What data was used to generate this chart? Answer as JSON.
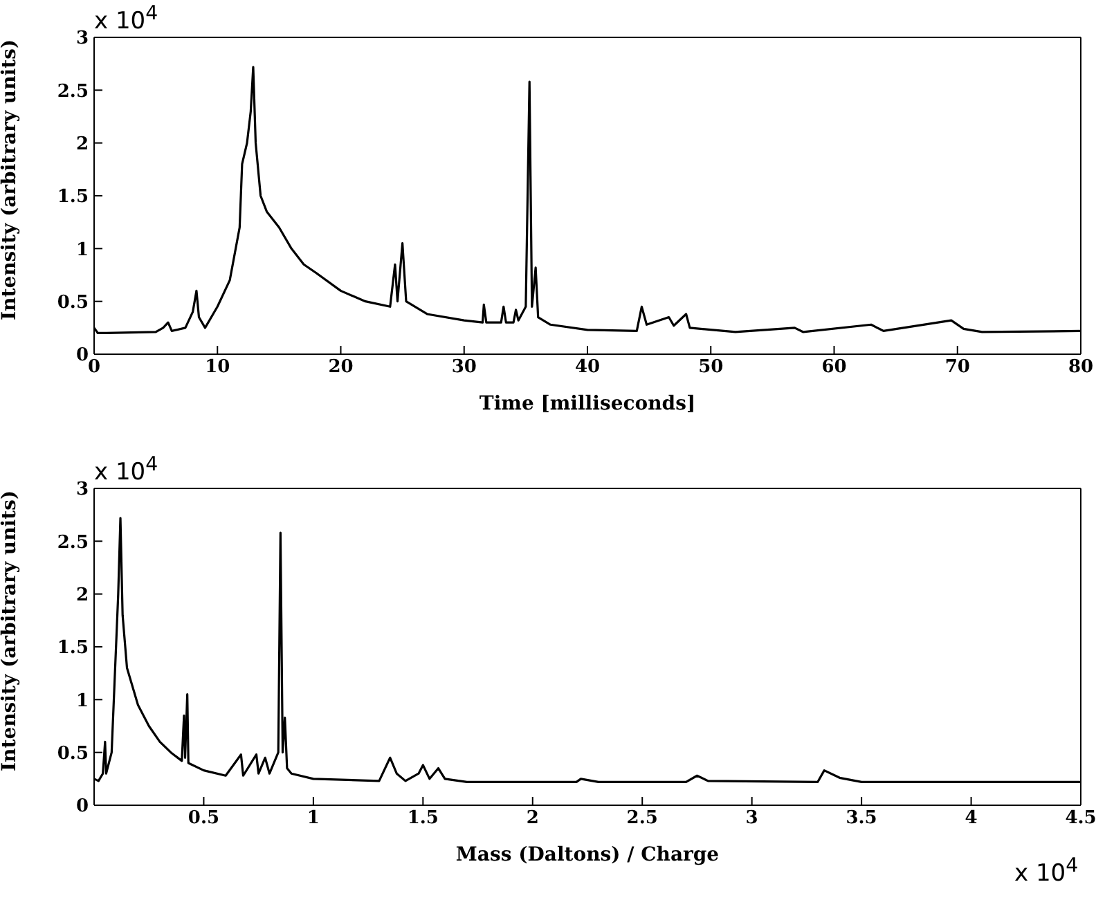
{
  "chart_data": [
    {
      "type": "line",
      "xlabel": "Time [milliseconds]",
      "ylabel": "Intensity (arbitrary units)",
      "annotations": [
        "x 10$^{4}$"
      ],
      "xlim": [
        0,
        80
      ],
      "xticks": [
        0,
        10,
        20,
        30,
        40,
        50,
        60,
        70,
        80
      ],
      "ylim": [
        0,
        3
      ],
      "yticks": [
        0,
        0.5,
        1,
        1.5,
        2,
        2.5,
        3
      ],
      "marker": "none",
      "series": [
        {
          "color": "#000000",
          "x": [
            0,
            0.3,
            1,
            5,
            5.6,
            6,
            6.3,
            7.4,
            8,
            8.3,
            8.5,
            9,
            10,
            11,
            11.8,
            12,
            12.4,
            12.7,
            12.9,
            13.1,
            13.5,
            14,
            15,
            16,
            17,
            18,
            20,
            22,
            24,
            24.4,
            24.6,
            25,
            25.3,
            27,
            30,
            31.5,
            31.6,
            31.8,
            33,
            33.2,
            33.4,
            34,
            34.2,
            34.4,
            35,
            35.3,
            35.5,
            35.8,
            36,
            37,
            40,
            44,
            44.4,
            44.8,
            46.6,
            47,
            48,
            48.3,
            52,
            56.8,
            57.5,
            63,
            64,
            69.5,
            70.5,
            72,
            80
          ],
          "values": [
            0.25,
            0.2,
            0.2,
            0.21,
            0.25,
            0.3,
            0.22,
            0.25,
            0.4,
            0.6,
            0.35,
            0.25,
            0.45,
            0.7,
            1.2,
            1.8,
            2.0,
            2.3,
            2.72,
            2.0,
            1.5,
            1.35,
            1.2,
            1.0,
            0.85,
            0.77,
            0.6,
            0.5,
            0.45,
            0.85,
            0.5,
            1.05,
            0.5,
            0.38,
            0.32,
            0.3,
            0.47,
            0.3,
            0.3,
            0.45,
            0.3,
            0.3,
            0.42,
            0.32,
            0.45,
            2.58,
            0.45,
            0.82,
            0.35,
            0.28,
            0.23,
            0.22,
            0.45,
            0.28,
            0.35,
            0.27,
            0.38,
            0.25,
            0.21,
            0.25,
            0.21,
            0.28,
            0.22,
            0.32,
            0.24,
            0.21,
            0.22
          ]
        }
      ]
    },
    {
      "type": "line",
      "xlabel": "Mass (Daltons) / Charge",
      "ylabel": "Intensity (arbitrary units)",
      "annotations": [
        "x 10$^{4}$",
        "x 10$^{4}$"
      ],
      "xlim": [
        0,
        4.5
      ],
      "xticks": [
        0.5,
        1,
        1.5,
        2,
        2.5,
        3,
        3.5,
        4,
        4.5
      ],
      "ylim": [
        0,
        3
      ],
      "yticks": [
        0,
        0.5,
        1,
        1.5,
        2,
        2.5,
        3
      ],
      "marker": "none",
      "series": [
        {
          "color": "#000000",
          "x": [
            0,
            0.02,
            0.04,
            0.05,
            0.055,
            0.08,
            0.1,
            0.11,
            0.12,
            0.13,
            0.15,
            0.2,
            0.25,
            0.3,
            0.35,
            0.4,
            0.41,
            0.415,
            0.425,
            0.43,
            0.5,
            0.6,
            0.67,
            0.68,
            0.74,
            0.75,
            0.78,
            0.8,
            0.84,
            0.85,
            0.86,
            0.87,
            0.88,
            0.9,
            1,
            1.3,
            1.35,
            1.38,
            1.42,
            1.48,
            1.5,
            1.53,
            1.57,
            1.6,
            1.7,
            2.2,
            2.22,
            2.3,
            2.7,
            2.75,
            2.8,
            3.3,
            3.33,
            3.4,
            3.5,
            4.5
          ],
          "values": [
            0.25,
            0.23,
            0.3,
            0.6,
            0.3,
            0.5,
            1.5,
            2.0,
            2.72,
            1.8,
            1.3,
            0.95,
            0.75,
            0.6,
            0.5,
            0.42,
            0.85,
            0.45,
            1.05,
            0.4,
            0.33,
            0.28,
            0.48,
            0.28,
            0.48,
            0.3,
            0.45,
            0.3,
            0.5,
            2.58,
            0.5,
            0.83,
            0.35,
            0.3,
            0.25,
            0.23,
            0.45,
            0.3,
            0.23,
            0.3,
            0.38,
            0.25,
            0.35,
            0.25,
            0.22,
            0.22,
            0.25,
            0.22,
            0.22,
            0.28,
            0.23,
            0.22,
            0.33,
            0.26,
            0.22,
            0.22
          ]
        }
      ]
    }
  ]
}
